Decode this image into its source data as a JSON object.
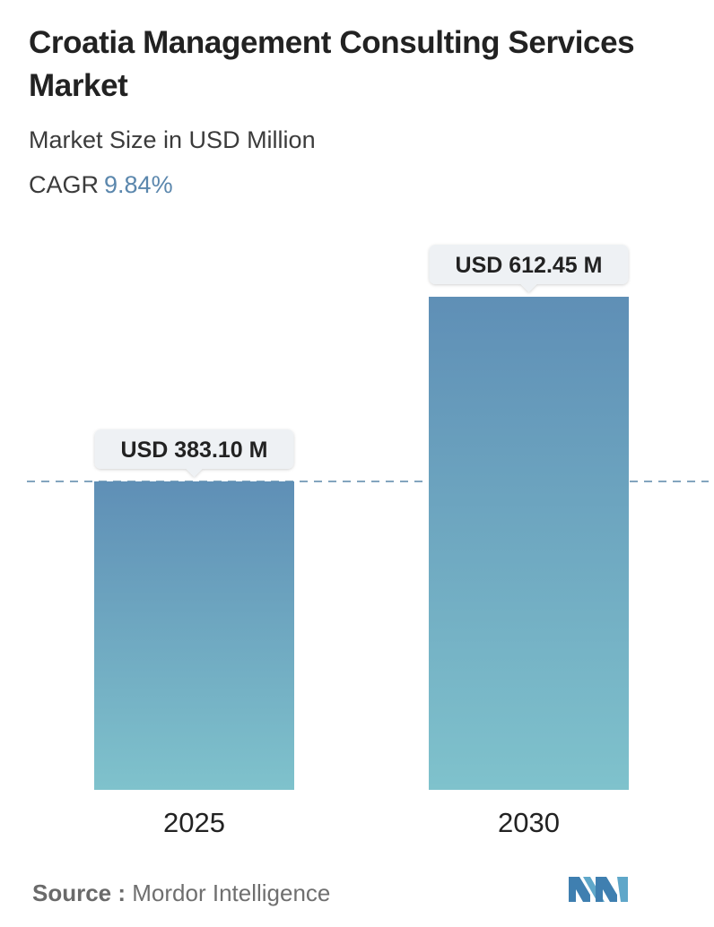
{
  "title": "Croatia Management Consulting Services Market",
  "subtitle": "Market Size in USD Million",
  "cagr": {
    "label": "CAGR",
    "value": "9.84%"
  },
  "source": {
    "label": "Source :",
    "value": "Mordor Intelligence"
  },
  "logo_icon": "mordor-intelligence-logo",
  "colors": {
    "bar_top": "#5f8fb6",
    "bar_bottom": "#7fc2cc",
    "cagr": "#5b87ad",
    "dashed": "#5a87a8",
    "logo": "#5fa7c9"
  },
  "chart_data": {
    "type": "bar",
    "categories": [
      "2025",
      "2030"
    ],
    "values": [
      383.1,
      612.45
    ],
    "data_labels": [
      "USD 383.10 M",
      "USD 612.45 M"
    ],
    "title": "Croatia Management Consulting Services Market",
    "subtitle": "Market Size in USD Million",
    "xlabel": "",
    "ylabel": "",
    "grid": false,
    "reference_line": 383.1
  }
}
